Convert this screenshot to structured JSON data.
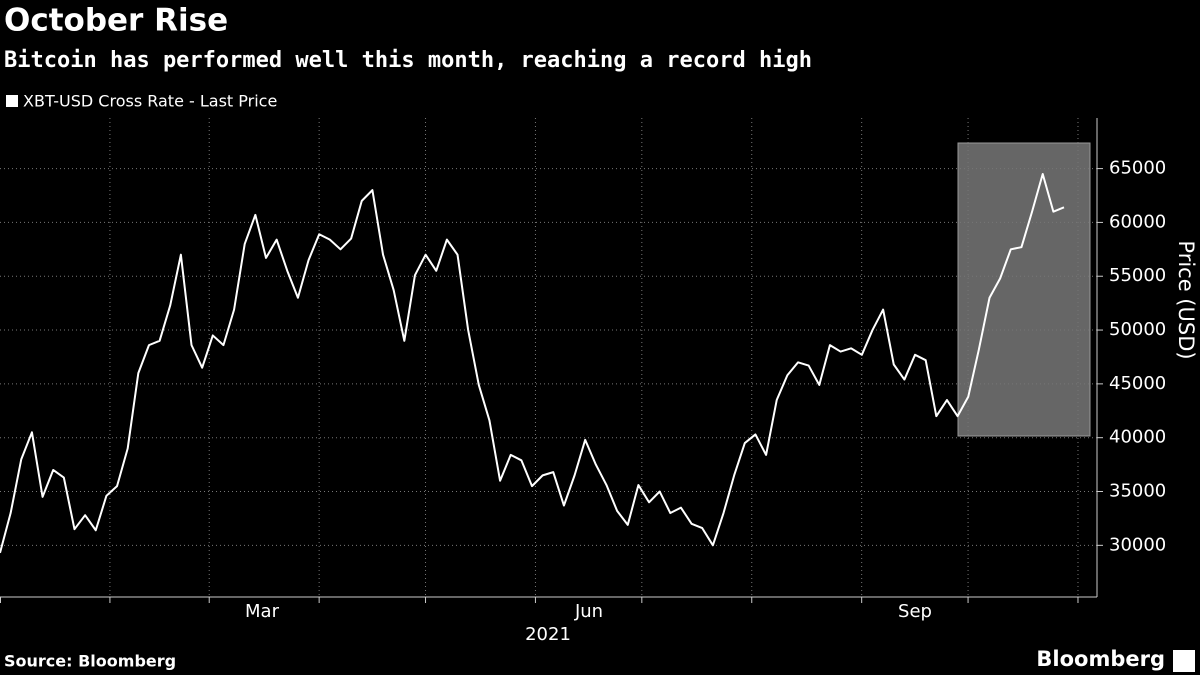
{
  "chart_data": {
    "type": "line",
    "title": "October Rise",
    "subtitle": "Bitcoin has performed well this month, reaching a record high",
    "y_label": "Price (USD)",
    "month_labels": [
      "Mar",
      "Jun",
      "Sep"
    ],
    "year_label": "2021",
    "source": "Source: Bloomberg",
    "logo": "Bloomberg",
    "categories": [
      null,
      null,
      null,
      null,
      null,
      null,
      null,
      null,
      null,
      null,
      null,
      null,
      null,
      null,
      null,
      null,
      null,
      null,
      null,
      null,
      null,
      null,
      null,
      null,
      null,
      null,
      null,
      null,
      null,
      null,
      null,
      null,
      null,
      null,
      null,
      null,
      null,
      null,
      null,
      null,
      null,
      null,
      null,
      null,
      null,
      null,
      null,
      null,
      null,
      null,
      null,
      null,
      null,
      null,
      null,
      null,
      null,
      null,
      null,
      null,
      null,
      null,
      null,
      null,
      null,
      null,
      null,
      null,
      null,
      null,
      null,
      null,
      null,
      null,
      null,
      null,
      null,
      null,
      null,
      null,
      null,
      null,
      null,
      null,
      null,
      null,
      null,
      null,
      null,
      null,
      null,
      null,
      null,
      null,
      null,
      null,
      null,
      null,
      null,
      null,
      null
    ],
    "series": [
      {
        "name": "XBT-USD Cross Rate - Last Price",
        "color": "#ffffff",
        "values": [
          29300,
          33000,
          38000,
          40500,
          34500,
          37000,
          36300,
          31500,
          32800,
          31400,
          34600,
          35500,
          39000,
          46000,
          48600,
          49000,
          52300,
          57000,
          48600,
          46500,
          49500,
          48600,
          51900,
          58000,
          60700,
          56700,
          58400,
          55500,
          53000,
          56500,
          58900,
          58400,
          57500,
          58500,
          62000,
          63000,
          57000,
          53700,
          49000,
          55100,
          57000,
          55500,
          58400,
          57000,
          50000,
          44900,
          41600,
          36000,
          38400,
          37900,
          35500,
          36500,
          36800,
          33700,
          36500,
          39800,
          37500,
          35600,
          33200,
          31900,
          35600,
          34000,
          35000,
          33000,
          33500,
          32000,
          31600,
          30000,
          33000,
          36500,
          39500,
          40300,
          38400,
          43500,
          45800,
          47000,
          46700,
          44900,
          48600,
          48000,
          48300,
          47700,
          50000,
          51900,
          46800,
          45400,
          47700,
          47200,
          42000,
          43500,
          42000,
          43800,
          48200,
          53000,
          54800,
          57500,
          57700,
          61000,
          64500,
          61000,
          61400
        ]
      }
    ],
    "ylim": [
      25200,
      69700
    ],
    "yticks": [
      30000,
      35000,
      40000,
      45000,
      50000,
      55000,
      60000,
      65000
    ],
    "grid": true
  }
}
